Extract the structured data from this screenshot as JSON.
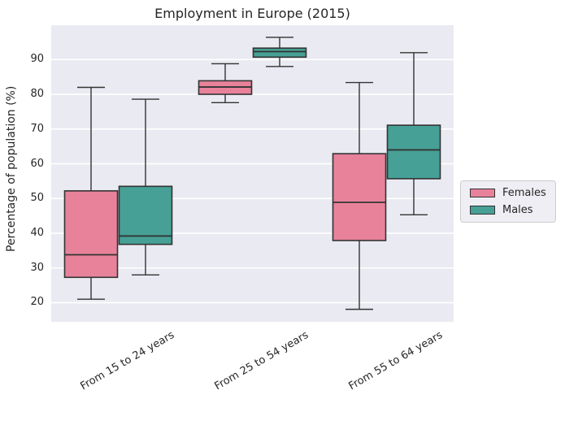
{
  "title": "Employment in Europe (2015)",
  "ylabel": "Percentage of population (%)",
  "legend": {
    "items": [
      {
        "label": "Females",
        "color": "#E8829B"
      },
      {
        "label": "Males",
        "color": "#46A096"
      }
    ]
  },
  "colors": {
    "females": "#E8829B",
    "males": "#46A096",
    "plot_bg": "#EAEAF2",
    "grid": "#FFFFFF",
    "box_edge": "#333333",
    "text": "#262626",
    "legend_bg": "#EEEEF4",
    "legend_border": "#CCCCCC"
  },
  "chart_data": {
    "type": "boxplot",
    "title": "Employment in Europe (2015)",
    "ylabel": "Percentage of population (%)",
    "xlabel": "",
    "categories": [
      "From 15 to 24 years",
      "From 25 to 54 years",
      "From 55 to 64 years"
    ],
    "yticks": [
      20,
      30,
      40,
      50,
      60,
      70,
      80,
      90
    ],
    "ylim": [
      14.5,
      99.9
    ],
    "grid": true,
    "grid_style": "seaborn-darkgrid (white horizontal gridlines on lavender background)",
    "legend_position": "outside right, vertically centered",
    "outliers": [],
    "series": [
      {
        "name": "Females",
        "color": "#E8829B",
        "boxes": [
          {
            "category": "From 15 to 24 years",
            "whisker_low": 21,
            "q1": 27.3,
            "median": 33.8,
            "q3": 52.2,
            "whisker_high": 82
          },
          {
            "category": "From 25 to 54 years",
            "whisker_low": 77.6,
            "q1": 80,
            "median": 82.1,
            "q3": 83.9,
            "whisker_high": 88.8
          },
          {
            "category": "From 55 to 64 years",
            "whisker_low": 18.1,
            "q1": 37.9,
            "median": 48.9,
            "q3": 62.9,
            "whisker_high": 83.4
          }
        ]
      },
      {
        "name": "Males",
        "color": "#46A096",
        "boxes": [
          {
            "category": "From 15 to 24 years",
            "whisker_low": 28,
            "q1": 36.8,
            "median": 39.2,
            "q3": 53.5,
            "whisker_high": 78.6
          },
          {
            "category": "From 25 to 54 years",
            "whisker_low": 88,
            "q1": 90.7,
            "median": 92.3,
            "q3": 93.3,
            "whisker_high": 96.4
          },
          {
            "category": "From 55 to 64 years",
            "whisker_low": 45.3,
            "q1": 55.7,
            "median": 64,
            "q3": 71.1,
            "whisker_high": 92
          }
        ]
      }
    ]
  }
}
